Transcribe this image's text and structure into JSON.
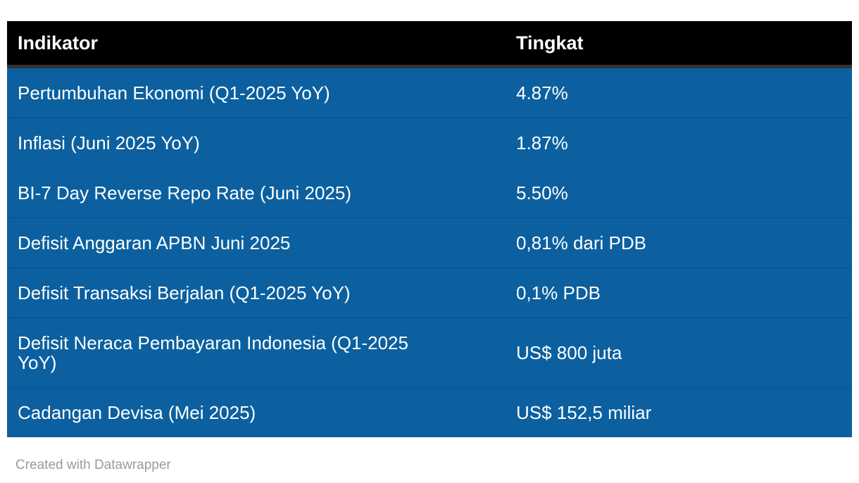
{
  "table": {
    "columns": [
      {
        "label": "Indikator"
      },
      {
        "label": "Tingkat"
      }
    ],
    "rows": [
      {
        "indikator": "Pertumbuhan Ekonomi (Q1-2025 YoY)",
        "tingkat": "4.87%"
      },
      {
        "indikator": "Inflasi (Juni 2025 YoY)",
        "tingkat": "1.87%"
      },
      {
        "indikator": "BI-7 Day Reverse Repo Rate (Juni 2025)",
        "tingkat": "5.50%"
      },
      {
        "indikator": "Defisit Anggaran APBN Juni 2025",
        "tingkat": "0,81% dari PDB"
      },
      {
        "indikator": "Defisit Transaksi Berjalan (Q1-2025 YoY)",
        "tingkat": "0,1% PDB"
      },
      {
        "indikator": "Defisit Neraca Pembayaran Indonesia (Q1-2025 YoY)",
        "tingkat": "US$ 800 juta"
      },
      {
        "indikator": "Cadangan Devisa (Mei 2025)",
        "tingkat": "US$ 152,5 miliar"
      }
    ]
  },
  "footer": {
    "attribution": "Created with Datawrapper"
  },
  "colors": {
    "header_bg": "#000000",
    "header_border": "#333333",
    "row_bg": "#0c609f",
    "row_divider": "#0a538b",
    "cell_text": "#ffffff",
    "footer_text": "#9b9b9b",
    "page_bg": "#ffffff"
  },
  "chart_data": {
    "type": "table",
    "title": "",
    "columns": [
      "Indikator",
      "Tingkat"
    ],
    "rows": [
      [
        "Pertumbuhan Ekonomi (Q1-2025 YoY)",
        "4.87%"
      ],
      [
        "Inflasi (Juni 2025 YoY)",
        "1.87%"
      ],
      [
        "BI-7 Day Reverse Repo Rate (Juni 2025)",
        "5.50%"
      ],
      [
        "Defisit Anggaran APBN Juni 2025",
        "0,81% dari PDB"
      ],
      [
        "Defisit Transaksi Berjalan (Q1-2025 YoY)",
        "0,1% PDB"
      ],
      [
        "Defisit Neraca Pembayaran Indonesia (Q1-2025 YoY)",
        "US$ 800 juta"
      ],
      [
        "Cadangan Devisa (Mei 2025)",
        "US$ 152,5 miliar"
      ]
    ],
    "attribution": "Created with Datawrapper"
  }
}
